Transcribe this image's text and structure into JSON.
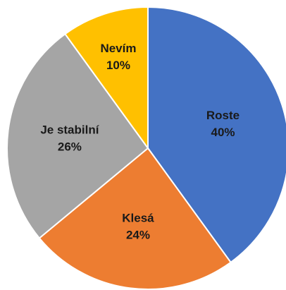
{
  "chart_data": {
    "type": "pie",
    "categories": [
      "Roste",
      "Klesá",
      "Je stabilní",
      "Nevím"
    ],
    "values": [
      40,
      24,
      26,
      10
    ],
    "value_labels": [
      "40%",
      "24%",
      "26%",
      "10%"
    ],
    "colors": [
      "#4472c4",
      "#ed7d31",
      "#a5a5a5",
      "#ffc000"
    ]
  }
}
